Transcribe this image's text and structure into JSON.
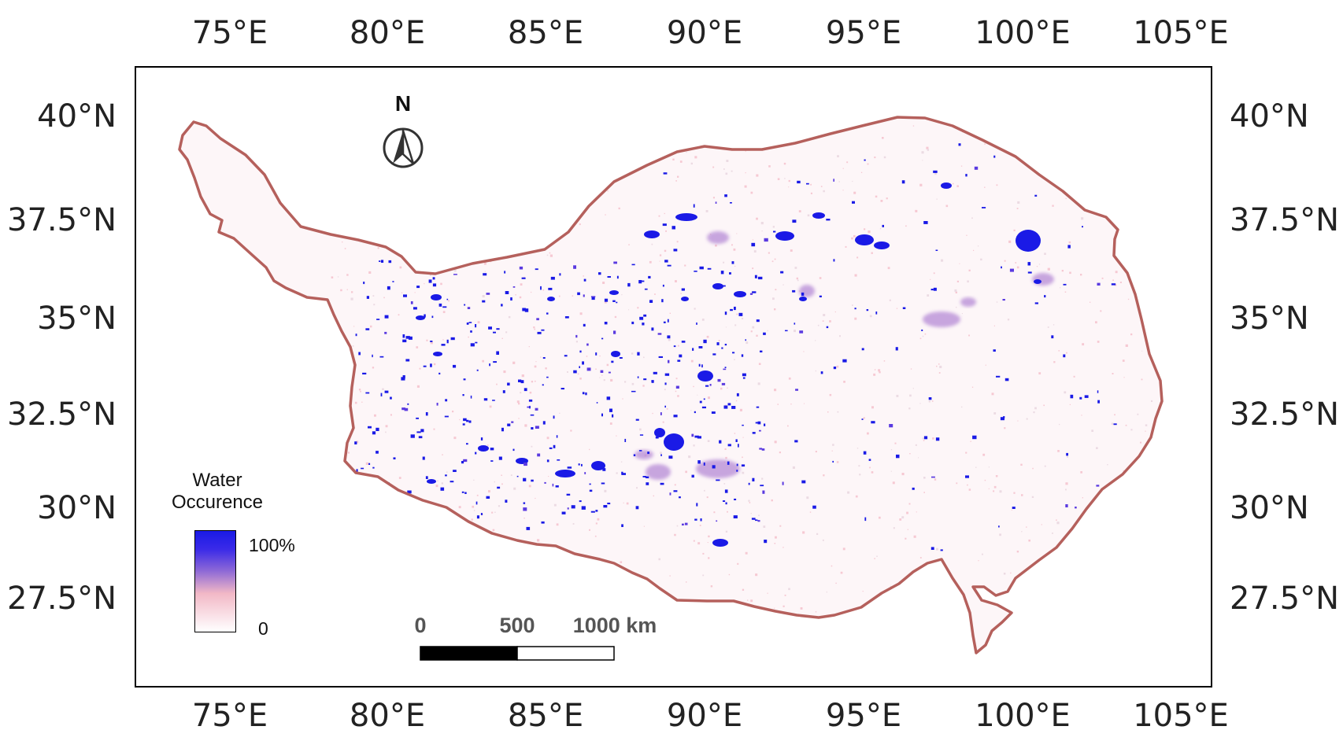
{
  "axes": {
    "lon_ticks": [
      "75°E",
      "80°E",
      "85°E",
      "90°E",
      "95°E",
      "100°E",
      "105°E"
    ],
    "lat_ticks": [
      "40°N",
      "37.5°N",
      "35°N",
      "32.5°N",
      "30°N",
      "27.5°N"
    ]
  },
  "north_arrow": {
    "letter": "N",
    "icon": "north-arrow-icon"
  },
  "legend": {
    "title_line1": "Water",
    "title_line2": "Occurence",
    "max_label": "100%",
    "min_label": "0",
    "colors": {
      "high": "#1a1ae6",
      "mid": "#8f6ad6",
      "low": "#f2b8c6",
      "zero": "#ffffff"
    }
  },
  "scale_bar": {
    "labels": [
      "0",
      "500",
      "1000 km"
    ]
  },
  "colors": {
    "boundary": "#b5605c",
    "water": "#1a1ae6",
    "frame": "#000000"
  }
}
